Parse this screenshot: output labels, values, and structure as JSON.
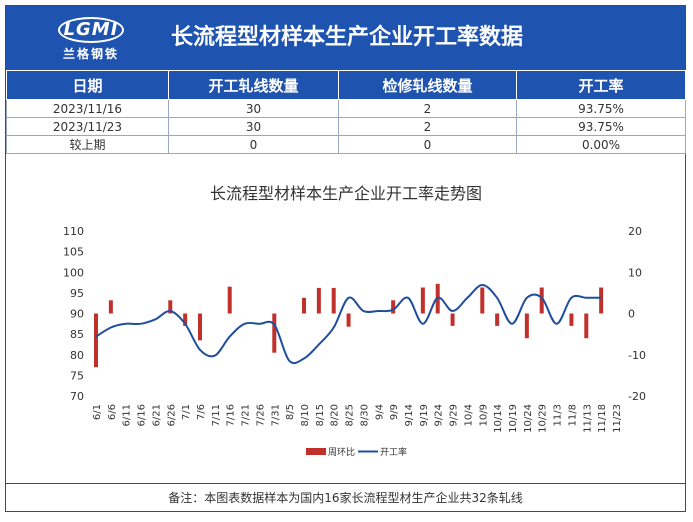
{
  "header": {
    "logo_text": "LGMI",
    "logo_sub": "兰格钢铁",
    "title": "长流程型材样本生产企业开工率数据"
  },
  "table": {
    "columns": [
      "日期",
      "开工轧线数量",
      "检修轧线数量",
      "开工率"
    ],
    "rows": [
      [
        "2023/11/16",
        "30",
        "2",
        "93.75%"
      ],
      [
        "2023/11/23",
        "30",
        "2",
        "93.75%"
      ],
      [
        "较上期",
        "0",
        "0",
        "0.00%"
      ]
    ]
  },
  "chart_data": {
    "type": "bar+line",
    "title": "长流程型材样本生产企业开工率走势图",
    "categories": [
      "6/1",
      "6/6",
      "6/11",
      "6/16",
      "6/21",
      "6/26",
      "7/1",
      "7/6",
      "7/11",
      "7/16",
      "7/21",
      "7/26",
      "7/31",
      "8/5",
      "8/10",
      "8/15",
      "8/20",
      "8/25",
      "8/30",
      "9/4",
      "9/9",
      "9/14",
      "9/19",
      "9/24",
      "9/29",
      "10/4",
      "10/9",
      "10/14",
      "10/19",
      "10/24",
      "10/29",
      "11/3",
      "11/8",
      "11/13",
      "11/18",
      "11/23"
    ],
    "left_axis": {
      "min": 70,
      "max": 110,
      "step": 5,
      "ticks": [
        70,
        75,
        80,
        85,
        90,
        95,
        100,
        105,
        110
      ]
    },
    "right_axis": {
      "min": -20,
      "max": 20,
      "step": 10,
      "ticks": [
        -20,
        -10,
        0,
        10,
        20
      ]
    },
    "series": [
      {
        "name": "周环比",
        "type": "bar",
        "axis": "right",
        "color": "#c0312b",
        "points": [
          [
            0,
            -13
          ],
          [
            1,
            3.2
          ],
          [
            5,
            3.2
          ],
          [
            6,
            -3
          ],
          [
            7,
            -6.5
          ],
          [
            9,
            6.5
          ],
          [
            12,
            -9.5
          ],
          [
            14,
            3.8
          ],
          [
            15,
            6.2
          ],
          [
            16,
            6.2
          ],
          [
            17,
            -3.2
          ],
          [
            20,
            3.2
          ],
          [
            22,
            6.3
          ],
          [
            23,
            7.2
          ],
          [
            24,
            -3
          ],
          [
            26,
            6.3
          ],
          [
            27,
            -3
          ],
          [
            29,
            -6
          ],
          [
            30,
            6.3
          ],
          [
            32,
            -3
          ],
          [
            33,
            -6
          ],
          [
            34,
            6.3
          ]
        ]
      },
      {
        "name": "开工率",
        "type": "line",
        "axis": "left",
        "color": "#1f4e9e",
        "points": [
          [
            0,
            84.4
          ],
          [
            1,
            86.6
          ],
          [
            2,
            87.5
          ],
          [
            3,
            87.5
          ],
          [
            4,
            88.6
          ],
          [
            5,
            90.6
          ],
          [
            6,
            87.5
          ],
          [
            7,
            81.2
          ],
          [
            8,
            79.8
          ],
          [
            9,
            84.4
          ],
          [
            10,
            87.5
          ],
          [
            11,
            87.5
          ],
          [
            12,
            87.3
          ],
          [
            13,
            78.6
          ],
          [
            14,
            79.1
          ],
          [
            15,
            82.5
          ],
          [
            16,
            86.6
          ],
          [
            17,
            93.8
          ],
          [
            18,
            90.6
          ],
          [
            19,
            90.6
          ],
          [
            20,
            90.9
          ],
          [
            21,
            93.8
          ],
          [
            22,
            87.5
          ],
          [
            23,
            93.8
          ],
          [
            24,
            90.6
          ],
          [
            25,
            93.8
          ],
          [
            26,
            96.9
          ],
          [
            27,
            93.8
          ],
          [
            28,
            87.5
          ],
          [
            29,
            93.8
          ],
          [
            30,
            93.8
          ],
          [
            31,
            87.5
          ],
          [
            32,
            93.8
          ],
          [
            33,
            93.8
          ],
          [
            34,
            93.8
          ]
        ]
      }
    ],
    "legend_position": "bottom",
    "grid": false
  },
  "footer": {
    "note": "备注：本图表数据样本为国内16家长流程型材生产企业共32条轧线"
  }
}
